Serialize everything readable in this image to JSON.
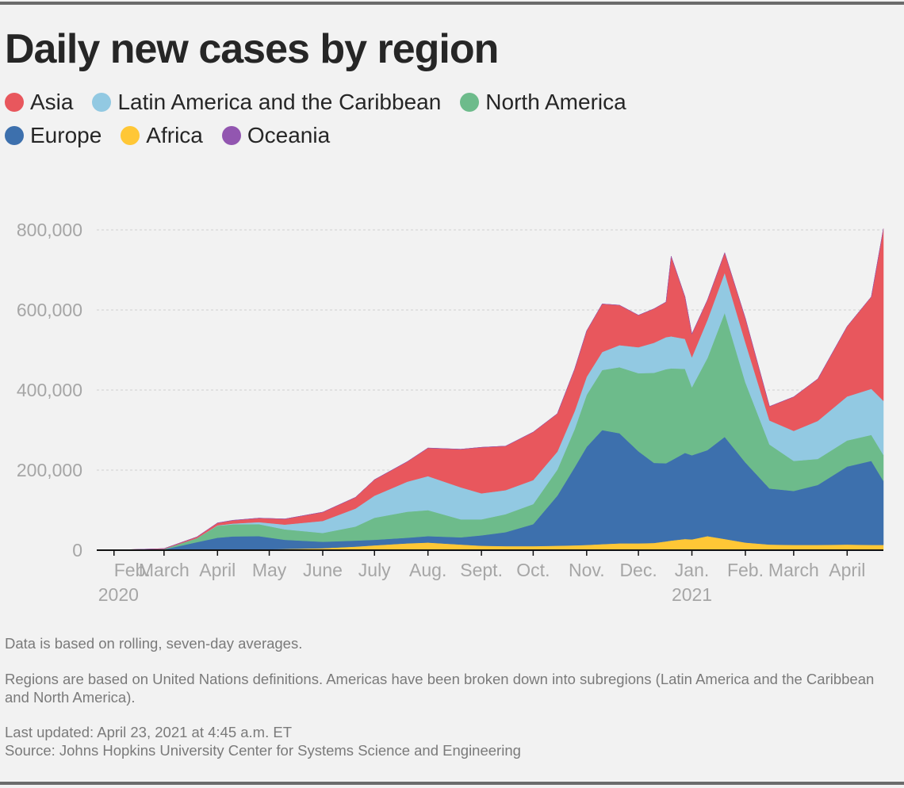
{
  "title": "Daily new cases by region",
  "legend": [
    {
      "label": "Asia",
      "color": "#e8575d"
    },
    {
      "label": "Latin America and the Caribbean",
      "color": "#92c9e2"
    },
    {
      "label": "North America",
      "color": "#6dbb8b"
    },
    {
      "label": "Europe",
      "color": "#3d70ad"
    },
    {
      "label": "Africa",
      "color": "#ffc736"
    },
    {
      "label": "Oceania",
      "color": "#9256b0"
    }
  ],
  "notes": {
    "averages": "Data is based on rolling, seven-day averages.",
    "regions": "Regions are based on United Nations definitions. Americas have been broken down into subregions (Latin America and the Caribbean and North America).",
    "updated": "Last updated: April 23, 2021 at 4:45 a.m. ET",
    "source": "Source: Johns Hopkins University Center for Systems Science and Engineering"
  },
  "chart_data": {
    "type": "area",
    "stacking": "stacked",
    "x_unit": "date",
    "x": [
      "2020-02-01",
      "2020-03-01",
      "2020-03-20",
      "2020-04-01",
      "2020-04-10",
      "2020-04-25",
      "2020-05-10",
      "2020-06-01",
      "2020-06-20",
      "2020-07-01",
      "2020-07-20",
      "2020-08-01",
      "2020-08-20",
      "2020-09-01",
      "2020-09-15",
      "2020-10-01",
      "2020-10-15",
      "2020-10-25",
      "2020-11-01",
      "2020-11-10",
      "2020-11-20",
      "2020-12-01",
      "2020-12-10",
      "2020-12-17",
      "2020-12-20",
      "2020-12-28",
      "2021-01-01",
      "2021-01-10",
      "2021-01-20",
      "2021-02-01",
      "2021-02-15",
      "2021-03-01",
      "2021-03-15",
      "2021-04-01",
      "2021-04-15",
      "2021-04-22"
    ],
    "series": [
      {
        "name": "Africa",
        "color": "#ffc736",
        "values": [
          0,
          0,
          0,
          1000,
          1500,
          2000,
          3000,
          5000,
          9000,
          12000,
          17000,
          19000,
          14000,
          11000,
          10000,
          10000,
          11000,
          12000,
          13000,
          15000,
          17000,
          17000,
          18000,
          22000,
          24000,
          28000,
          27000,
          35000,
          28000,
          19000,
          14000,
          13000,
          13000,
          14000,
          13000,
          13000
        ]
      },
      {
        "name": "Europe",
        "color": "#3d70ad",
        "values": [
          0,
          2000,
          20000,
          30000,
          33000,
          33000,
          23000,
          16000,
          15000,
          14000,
          14000,
          16000,
          18000,
          26000,
          35000,
          55000,
          125000,
          195000,
          245000,
          285000,
          275000,
          230000,
          200000,
          195000,
          200000,
          215000,
          210000,
          215000,
          255000,
          200000,
          140000,
          135000,
          150000,
          195000,
          210000,
          160000
        ]
      },
      {
        "name": "North America",
        "color": "#6dbb8b",
        "values": [
          0,
          1000,
          10000,
          30000,
          30000,
          30000,
          26000,
          22000,
          35000,
          55000,
          65000,
          65000,
          45000,
          40000,
          45000,
          50000,
          65000,
          95000,
          130000,
          150000,
          165000,
          195000,
          225000,
          235000,
          230000,
          210000,
          170000,
          230000,
          310000,
          200000,
          110000,
          75000,
          65000,
          65000,
          65000,
          65000
        ]
      },
      {
        "name": "Latin America and the Caribbean",
        "color": "#92c9e2",
        "values": [
          0,
          0,
          0,
          1000,
          2000,
          5000,
          12000,
          30000,
          45000,
          55000,
          75000,
          85000,
          80000,
          65000,
          60000,
          60000,
          45000,
          45000,
          45000,
          45000,
          55000,
          65000,
          75000,
          80000,
          80000,
          75000,
          75000,
          95000,
          100000,
          100000,
          60000,
          75000,
          95000,
          110000,
          115000,
          135000
        ]
      },
      {
        "name": "Asia",
        "color": "#e8575d",
        "values": [
          100,
          1000,
          3000,
          6000,
          8000,
          10000,
          14000,
          22000,
          28000,
          40000,
          50000,
          70000,
          95000,
          115000,
          110000,
          120000,
          95000,
          105000,
          115000,
          120000,
          100000,
          80000,
          85000,
          88000,
          200000,
          105000,
          58000,
          50000,
          50000,
          60000,
          35000,
          85000,
          105000,
          175000,
          230000,
          430000
        ]
      },
      {
        "name": "Oceania",
        "color": "#9256b0",
        "values": [
          0,
          0,
          0,
          300,
          300,
          100,
          0,
          0,
          100,
          300,
          400,
          500,
          200,
          100,
          0,
          0,
          0,
          0,
          0,
          0,
          0,
          0,
          0,
          0,
          0,
          0,
          0,
          0,
          0,
          0,
          0,
          0,
          0,
          0,
          0,
          0
        ]
      }
    ],
    "x_ticks": [
      {
        "label": "Feb.",
        "date": "2020-02-01",
        "year": "2020"
      },
      {
        "label": "March",
        "date": "2020-03-01"
      },
      {
        "label": "April",
        "date": "2020-04-01"
      },
      {
        "label": "May",
        "date": "2020-05-01"
      },
      {
        "label": "June",
        "date": "2020-06-01"
      },
      {
        "label": "July",
        "date": "2020-07-01"
      },
      {
        "label": "Aug.",
        "date": "2020-08-01"
      },
      {
        "label": "Sept.",
        "date": "2020-09-01"
      },
      {
        "label": "Oct.",
        "date": "2020-10-01"
      },
      {
        "label": "Nov.",
        "date": "2020-11-01"
      },
      {
        "label": "Dec.",
        "date": "2020-12-01"
      },
      {
        "label": "Jan.",
        "date": "2021-01-01",
        "year": "2021"
      },
      {
        "label": "Feb.",
        "date": "2021-02-01"
      },
      {
        "label": "March",
        "date": "2021-03-01"
      },
      {
        "label": "April",
        "date": "2021-04-01"
      }
    ],
    "y_ticks": [
      {
        "value": 0,
        "label": "0"
      },
      {
        "value": 200000,
        "label": "200,000"
      },
      {
        "value": 400000,
        "label": "400,000"
      },
      {
        "value": 600000,
        "label": "600,000"
      },
      {
        "value": 800000,
        "label": "800,000"
      }
    ],
    "ylim": [
      0,
      800000
    ],
    "xlim": [
      "2020-01-22",
      "2021-04-22"
    ],
    "grid": "horizontal dashed",
    "legend_position": "top-left"
  }
}
